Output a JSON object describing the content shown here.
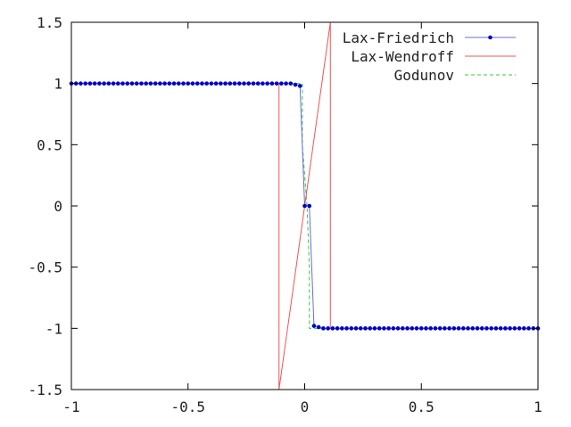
{
  "chart_data": {
    "type": "line",
    "xlim": [
      -1,
      1
    ],
    "ylim": [
      -1.5,
      1.5
    ],
    "x_ticks": [
      "-1",
      "-0.5",
      "0",
      "0.5",
      "1"
    ],
    "y_ticks": [
      "-1.5",
      "-1",
      "-0.5",
      "0",
      "0.5",
      "1",
      "1.5"
    ],
    "grid": false,
    "legend_position": "top-right",
    "series": [
      {
        "name": "Lax-Friedrich",
        "color": "#0000cc",
        "line_color": "#6a6adb",
        "marker": "dot",
        "point_spacing": 0.02,
        "left_value": 1,
        "right_value": -1,
        "transition": [
          {
            "x": -0.06,
            "y": 1
          },
          {
            "x": -0.04,
            "y": 0.99
          },
          {
            "x": -0.02,
            "y": 0.98
          },
          {
            "x": 0.0,
            "y": 0.0
          },
          {
            "x": 0.02,
            "y": 0.0
          },
          {
            "x": 0.04,
            "y": -0.98
          },
          {
            "x": 0.06,
            "y": -0.99
          },
          {
            "x": 0.08,
            "y": -1
          }
        ]
      },
      {
        "name": "Lax-Wendroff",
        "color": "#ee5555",
        "x": [
          -1,
          -0.11,
          -0.11,
          0.11,
          0.11,
          1
        ],
        "y": [
          1,
          1,
          -1.5,
          1.5,
          -1,
          -1
        ]
      },
      {
        "name": "Godunov",
        "color": "#33cc33",
        "dash": true,
        "x": [
          -1,
          -0.01,
          -0.01,
          0.01,
          0.02,
          0.02,
          1
        ],
        "y": [
          1,
          1,
          0.5,
          0,
          -0.5,
          -1,
          -1
        ]
      }
    ]
  }
}
